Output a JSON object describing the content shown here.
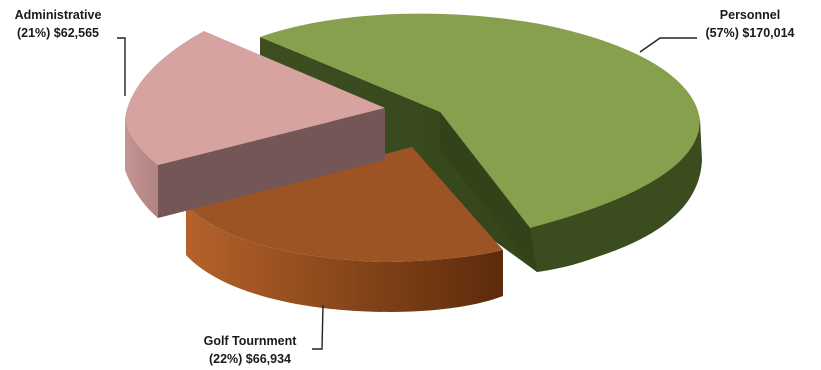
{
  "chart_data": {
    "type": "pie",
    "three_d": true,
    "exploded": true,
    "legend": "none",
    "slices": [
      {
        "name": "Personnel",
        "percent": 57,
        "value": 170014,
        "label_line1": "Personnel",
        "label_line2": "(57%) $170,014",
        "color": "#86a04e"
      },
      {
        "name": "Golf Tournment",
        "percent": 22,
        "value": 66934,
        "label_line1": "Golf Tournment",
        "label_line2": "(22%) $66,934",
        "color": "#9c5424"
      },
      {
        "name": "Administrative",
        "percent": 21,
        "value": 62565,
        "label_line1": "Administrative",
        "label_line2": "(21%) $62,565",
        "color": "#d6a3a1"
      }
    ]
  }
}
